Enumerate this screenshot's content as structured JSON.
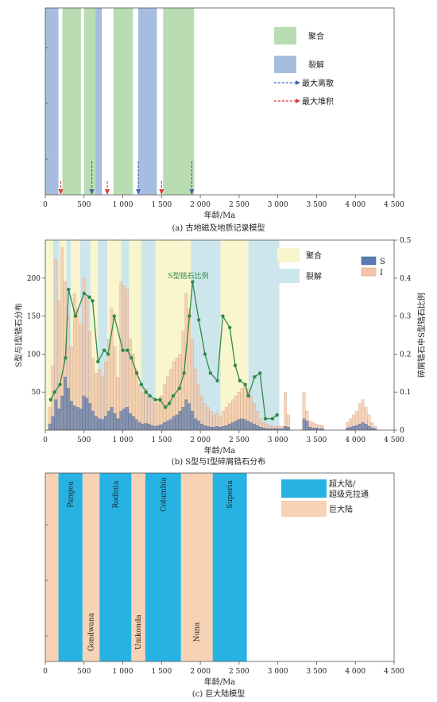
{
  "chart_data": [
    {
      "type": "bar",
      "panel": "a",
      "caption": "(a) 古地磁及地质记录模型",
      "xlabel": "年龄/Ma",
      "xlim": [
        0,
        4500
      ],
      "x_ticks": [
        "0",
        "500",
        "1 000",
        "1 500",
        "2 000",
        "2 500",
        "3 000",
        "3 500",
        "4 000",
        "4 500"
      ],
      "x_tick_values": [
        0,
        500,
        1000,
        1500,
        2000,
        2500,
        3000,
        3500,
        4000,
        4500
      ],
      "colors": {
        "assembly": "#b9dcb2",
        "breakup": "#a7bde0",
        "max_dispersal": "#3c67b5",
        "max_accumulation": "#d93a3a"
      },
      "legend": {
        "assembly": "聚合",
        "breakup": "裂解",
        "max_dispersal": "最大离散",
        "max_accumulation": "最大堆积"
      },
      "breakup_intervals": [
        [
          0,
          170
        ],
        [
          580,
          730
        ],
        [
          1200,
          1440
        ]
      ],
      "assembly_intervals": [
        [
          220,
          460
        ],
        [
          500,
          650
        ],
        [
          880,
          1130
        ],
        [
          1520,
          1920
        ]
      ],
      "max_dispersal_arrows": [
        600,
        1200,
        1890
      ],
      "max_accumulation_arrows": [
        200,
        800,
        1500
      ]
    },
    {
      "type": "bar",
      "panel": "b",
      "caption": "(b) S型与I型碎屑锆石分布",
      "xlabel": "年龄/Ma",
      "ylabel_left": "S型与I型锆石分布",
      "ylabel_right": "碎屑锆石中S型锆石比例",
      "xlim": [
        0,
        4500
      ],
      "ylim_left": [
        0,
        250
      ],
      "ylim_right": [
        0,
        0.5
      ],
      "x_ticks": [
        "0",
        "500",
        "1 000",
        "1 500",
        "2 000",
        "2 500",
        "3 000",
        "3 500",
        "4 000",
        "4 500"
      ],
      "x_tick_values": [
        0,
        500,
        1000,
        1500,
        2000,
        2500,
        3000,
        3500,
        4000,
        4500
      ],
      "y_ticks_left": [
        "50",
        "100",
        "150",
        "200"
      ],
      "y_tick_values_left": [
        50,
        100,
        150,
        200
      ],
      "y_ticks_right": [
        "0",
        "0.1",
        "0.2",
        "0.3",
        "0.4",
        "0.5"
      ],
      "y_tick_values_right": [
        0,
        0.1,
        0.2,
        0.3,
        0.4,
        0.5
      ],
      "colors": {
        "assembly": "#f9f5cc",
        "breakup": "#cde6ec",
        "S": "#5a7ab0",
        "I": "#f4c6a8",
        "ratio": "#2f8a4a"
      },
      "legend": {
        "assembly": "聚合",
        "breakup": "裂解",
        "S": "S",
        "I": "I"
      },
      "annotation": "S型锆石比例",
      "assembly_intervals": [
        [
          0,
          100
        ],
        [
          180,
          270
        ],
        [
          330,
          450
        ],
        [
          580,
          680
        ],
        [
          800,
          980
        ],
        [
          1080,
          1240
        ],
        [
          1420,
          1880
        ],
        [
          2260,
          2620
        ]
      ],
      "breakup_intervals": [
        [
          100,
          180
        ],
        [
          270,
          330
        ],
        [
          450,
          580
        ],
        [
          680,
          800
        ],
        [
          980,
          1080
        ],
        [
          1240,
          1420
        ],
        [
          1880,
          2260
        ],
        [
          2620,
          3020
        ]
      ],
      "bin_width": 40,
      "I_hist": {
        "x": [
          60,
          100,
          140,
          180,
          220,
          260,
          300,
          340,
          380,
          420,
          460,
          500,
          540,
          580,
          620,
          660,
          700,
          740,
          780,
          820,
          860,
          900,
          940,
          980,
          1020,
          1060,
          1100,
          1140,
          1180,
          1220,
          1260,
          1300,
          1340,
          1380,
          1420,
          1460,
          1500,
          1540,
          1580,
          1620,
          1660,
          1700,
          1740,
          1780,
          1820,
          1860,
          1900,
          1940,
          1980,
          2020,
          2060,
          2100,
          2140,
          2180,
          2220,
          2260,
          2300,
          2340,
          2380,
          2420,
          2460,
          2500,
          2540,
          2580,
          2620,
          2660,
          2700,
          2740,
          2780,
          2820,
          2860,
          2900,
          2940,
          2980,
          3020,
          3060,
          3100,
          3140,
          3340,
          3380,
          3420,
          3460,
          3500,
          3540,
          3580,
          3900,
          3940,
          3980,
          4020,
          4060,
          4100,
          4140,
          4180,
          4220,
          4260
        ],
        "values": [
          30,
          85,
          225,
          170,
          240,
          195,
          150,
          110,
          180,
          160,
          140,
          200,
          175,
          130,
          95,
          75,
          80,
          70,
          90,
          120,
          160,
          110,
          70,
          195,
          190,
          185,
          120,
          100,
          80,
          60,
          50,
          55,
          45,
          40,
          35,
          40,
          45,
          60,
          70,
          80,
          90,
          95,
          100,
          130,
          180,
          160,
          120,
          80,
          60,
          45,
          35,
          30,
          25,
          20,
          22,
          18,
          25,
          30,
          35,
          40,
          45,
          50,
          55,
          60,
          55,
          45,
          35,
          25,
          15,
          10,
          8,
          6,
          5,
          5,
          6,
          5,
          50,
          20,
          50,
          25,
          12,
          10,
          8,
          7,
          6,
          10,
          15,
          20,
          25,
          35,
          40,
          30,
          20,
          10,
          5
        ]
      },
      "S_hist": {
        "x": [
          60,
          100,
          140,
          180,
          220,
          260,
          300,
          340,
          380,
          420,
          460,
          500,
          540,
          580,
          620,
          660,
          700,
          740,
          780,
          820,
          860,
          900,
          940,
          980,
          1020,
          1060,
          1100,
          1140,
          1180,
          1220,
          1260,
          1300,
          1340,
          1380,
          1420,
          1460,
          1500,
          1540,
          1580,
          1620,
          1660,
          1700,
          1740,
          1780,
          1820,
          1860,
          1900,
          1940,
          1980,
          2020,
          2060,
          2100,
          2140,
          2180,
          2220,
          2260,
          2300,
          2340,
          2380,
          2420,
          2460,
          2500,
          2540,
          2580,
          2620,
          2660,
          2700,
          2740,
          2780,
          2820,
          2860,
          2900,
          2940,
          2980,
          3020,
          3060,
          3100,
          3140,
          3340,
          3380,
          3420,
          3460,
          3500,
          3540,
          3580,
          3900,
          3940,
          3980,
          4020,
          4060,
          4100,
          4140,
          4180,
          4220,
          4260
        ],
        "values": [
          8,
          18,
          40,
          28,
          45,
          70,
          55,
          38,
          32,
          30,
          28,
          45,
          42,
          35,
          25,
          18,
          15,
          14,
          18,
          25,
          30,
          22,
          15,
          25,
          28,
          30,
          22,
          18,
          14,
          10,
          8,
          9,
          8,
          6,
          5,
          6,
          7,
          10,
          12,
          14,
          18,
          20,
          25,
          30,
          40,
          35,
          25,
          15,
          12,
          8,
          6,
          5,
          4,
          4,
          5,
          4,
          5,
          6,
          8,
          10,
          12,
          14,
          15,
          14,
          12,
          10,
          8,
          6,
          4,
          3,
          2,
          2,
          2,
          2,
          2,
          2,
          5,
          4,
          15,
          12,
          4,
          3,
          3,
          2,
          2,
          3,
          4,
          5,
          6,
          8,
          10,
          8,
          5,
          3,
          2
        ]
      },
      "ratio_line": {
        "x": [
          70,
          120,
          190,
          260,
          300,
          390,
          500,
          570,
          610,
          680,
          760,
          810,
          890,
          1000,
          1060,
          1110,
          1180,
          1240,
          1300,
          1350,
          1420,
          1480,
          1550,
          1600,
          1650,
          1730,
          1790,
          1860,
          1900,
          1980,
          2060,
          2130,
          2220,
          2290,
          2380,
          2450,
          2510,
          2580,
          2620,
          2700,
          2770,
          2840,
          2930,
          2990
        ],
        "values": [
          0.08,
          0.1,
          0.12,
          0.19,
          0.37,
          0.3,
          0.36,
          0.35,
          0.34,
          0.18,
          0.21,
          0.2,
          0.3,
          0.21,
          0.21,
          0.19,
          0.15,
          0.12,
          0.1,
          0.09,
          0.08,
          0.08,
          0.06,
          0.07,
          0.09,
          0.11,
          0.15,
          0.3,
          0.39,
          0.29,
          0.2,
          0.15,
          0.13,
          0.3,
          0.27,
          0.17,
          0.13,
          0.12,
          0.09,
          0.14,
          0.15,
          0.03,
          0.03,
          0.04
        ]
      }
    },
    {
      "type": "bar",
      "panel": "c",
      "caption": "(c) 巨大陆模型",
      "xlabel": "年龄/Ma",
      "xlim": [
        0,
        4500
      ],
      "x_ticks": [
        "0",
        "500",
        "1 000",
        "1 500",
        "2 000",
        "2 500",
        "3 000",
        "3 500",
        "4 000",
        "4 500"
      ],
      "x_tick_values": [
        0,
        500,
        1000,
        1500,
        2000,
        2500,
        3000,
        3500,
        4000,
        4500
      ],
      "colors": {
        "supercontinent": "#26b3e3",
        "megacontinent": "#f7d2b4"
      },
      "legend": {
        "supercontinent_line1": "超大陆/",
        "supercontinent_line2": "超级克拉通",
        "megacontinent": "巨大陆"
      },
      "supercontinents": [
        {
          "name": "Pangea",
          "start": 170,
          "end": 480
        },
        {
          "name": "Rodinia",
          "start": 700,
          "end": 1110
        },
        {
          "name": "Columbia",
          "start": 1290,
          "end": 1750
        },
        {
          "name": "Superia",
          "start": 2160,
          "end": 2600
        }
      ],
      "megacontinents": [
        {
          "name": "",
          "start": 0,
          "end": 170
        },
        {
          "name": "Gondwana",
          "start": 480,
          "end": 700
        },
        {
          "name": "Umkonda",
          "start": 1110,
          "end": 1290
        },
        {
          "name": "Nuna",
          "start": 1750,
          "end": 2160
        }
      ]
    }
  ]
}
